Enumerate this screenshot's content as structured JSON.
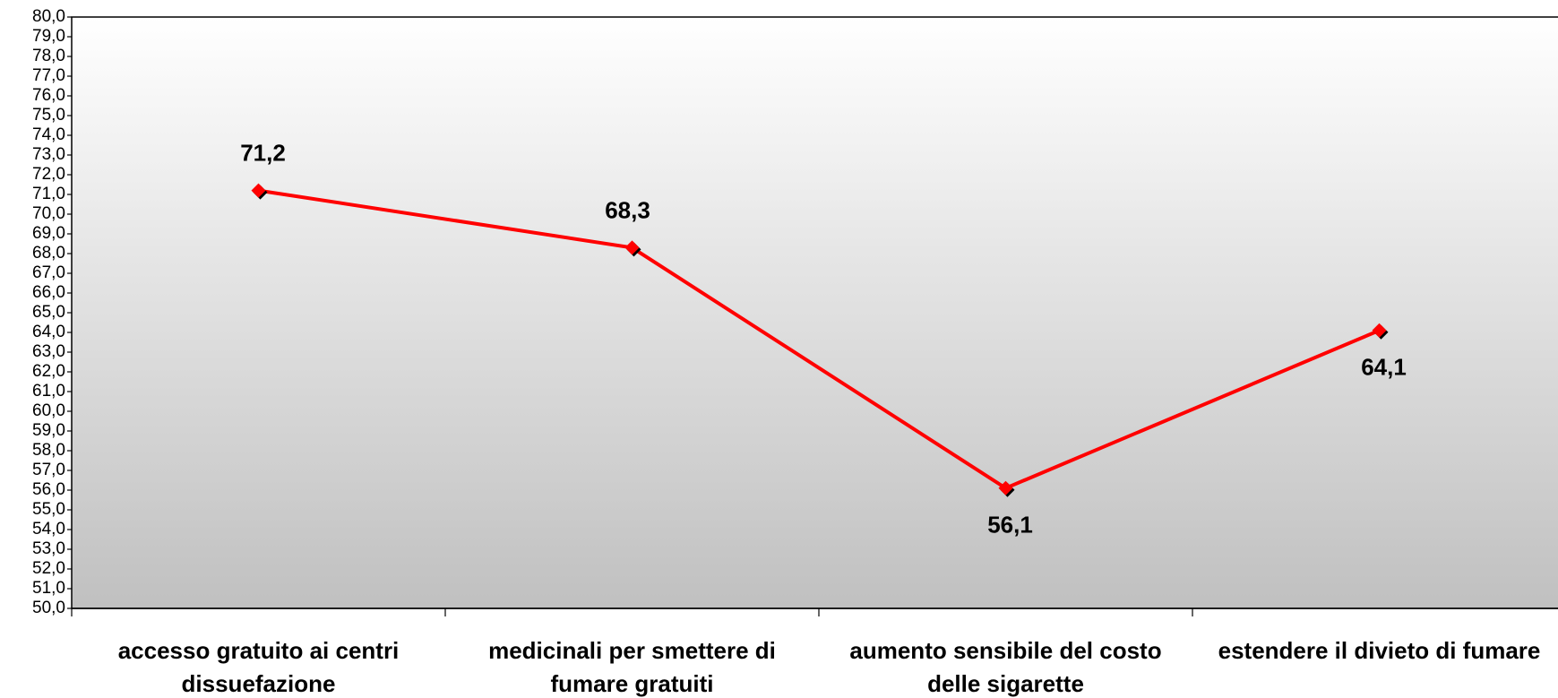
{
  "chart_data": {
    "type": "line",
    "categories": [
      "accesso gratuito ai centri dissuefazione",
      "medicinali per smettere di fumare gratuiti",
      "aumento sensibile del costo delle sigarette",
      "estendere il divieto di fumare"
    ],
    "values": [
      71.2,
      68.3,
      56.1,
      64.1
    ],
    "value_labels": [
      "71,2",
      "68,3",
      "56,1",
      "64,1"
    ],
    "color": "#ff0000",
    "ylim": [
      50,
      80
    ],
    "yticks": [
      {
        "value": 50,
        "label": "50,0"
      },
      {
        "value": 51,
        "label": "51,0"
      },
      {
        "value": 52,
        "label": "52,0"
      },
      {
        "value": 53,
        "label": "53,0"
      },
      {
        "value": 54,
        "label": "54,0"
      },
      {
        "value": 55,
        "label": "55,0"
      },
      {
        "value": 56,
        "label": "56,0"
      },
      {
        "value": 57,
        "label": "57,0"
      },
      {
        "value": 58,
        "label": "58,0"
      },
      {
        "value": 59,
        "label": "59,0"
      },
      {
        "value": 60,
        "label": "60,0"
      },
      {
        "value": 61,
        "label": "61,0"
      },
      {
        "value": 62,
        "label": "62,0"
      },
      {
        "value": 63,
        "label": "63,0"
      },
      {
        "value": 64,
        "label": "64,0"
      },
      {
        "value": 65,
        "label": "65,0"
      },
      {
        "value": 66,
        "label": "66,0"
      },
      {
        "value": 67,
        "label": "67,0"
      },
      {
        "value": 68,
        "label": "68,0"
      },
      {
        "value": 69,
        "label": "69,0"
      },
      {
        "value": 70,
        "label": "70,0"
      },
      {
        "value": 71,
        "label": "71,0"
      },
      {
        "value": 72,
        "label": "72,0"
      },
      {
        "value": 73,
        "label": "73,0"
      },
      {
        "value": 74,
        "label": "74,0"
      },
      {
        "value": 75,
        "label": "75,0"
      },
      {
        "value": 76,
        "label": "76,0"
      },
      {
        "value": 77,
        "label": "77,0"
      },
      {
        "value": 78,
        "label": "78,0"
      },
      {
        "value": 79,
        "label": "79,0"
      },
      {
        "value": 80,
        "label": "80,0"
      }
    ]
  }
}
